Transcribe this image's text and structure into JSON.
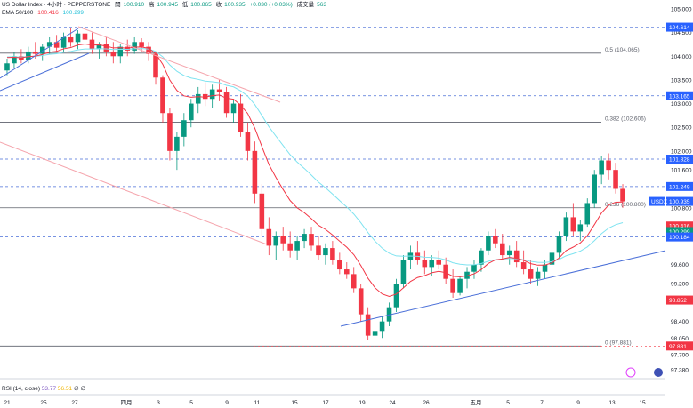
{
  "header": {
    "title": "US Dollar Index · 4小时 · PEPPERSTONE",
    "open_label": "開",
    "open": "100.910",
    "high_label": "高",
    "high": "100.945",
    "low_label": "低",
    "low": "100.865",
    "close_label": "收",
    "close": "100.935",
    "change": "+0.030 (+0.03%)",
    "volume_label": "成交量",
    "volume": "563",
    "ema_label": "EMA 50/100",
    "ema50": "100.416",
    "ema100": "100.299"
  },
  "rsi": {
    "label": "RSI (14, close)",
    "v1": "53.77",
    "v2": "56.51",
    "v3": "∅",
    "v4": "∅"
  },
  "colors": {
    "up": "#089981",
    "down": "#f23645",
    "ema50": "#f23645",
    "ema100": "#7fe3f0",
    "trend": "#4a6fd8",
    "level": "#4a6fd8"
  },
  "chart_data": {
    "type": "candlestick",
    "symbol": "USDX",
    "y_ticks": [
      "105.000",
      "104.500",
      "104.000",
      "103.500",
      "103.000",
      "102.500",
      "102.000",
      "101.600",
      "100.800",
      "99.600",
      "99.200",
      "98.400",
      "98.050",
      "97.700",
      "97.380"
    ],
    "ylim": [
      97.38,
      105.0
    ],
    "x_ticks": [
      "21",
      "25",
      "27",
      "四月",
      "3",
      "5",
      "9",
      "11",
      "15",
      "17",
      "19",
      "24",
      "26",
      "五月",
      "5",
      "7",
      "9",
      "13",
      "15"
    ],
    "price_labels": [
      {
        "value": 104.614,
        "text": "104.614",
        "color": "#2962ff"
      },
      {
        "value": 103.165,
        "text": "103.165",
        "color": "#2962ff"
      },
      {
        "value": 101.828,
        "text": "101.828",
        "color": "#2962ff"
      },
      {
        "value": 101.249,
        "text": "101.249",
        "color": "#2962ff"
      },
      {
        "value": 100.935,
        "text": "100.935",
        "color": "#2962ff",
        "name": "USDX"
      },
      {
        "value": 100.416,
        "text": "100.416",
        "color": "#f23645"
      },
      {
        "value": 100.299,
        "text": "100.299",
        "color": "#089981"
      },
      {
        "value": 100.184,
        "text": "100.184",
        "color": "#2962ff"
      },
      {
        "value": 98.852,
        "text": "98.852",
        "color": "#f23645"
      },
      {
        "value": 97.881,
        "text": "97.881",
        "color": "#f23645"
      }
    ],
    "fib_levels": [
      {
        "value": 104.065,
        "text": "0.5 (104.065)"
      },
      {
        "value": 102.606,
        "text": "0.382 (102.606)"
      },
      {
        "value": 100.8,
        "text": "0.236 (100.800)"
      },
      {
        "value": 97.881,
        "text": "0 (97.881)"
      }
    ],
    "dashed_levels": [
      104.614,
      103.165,
      101.828,
      101.249,
      100.184
    ],
    "candles": [
      [
        103.7,
        103.95,
        103.6,
        103.85
      ],
      [
        103.85,
        104.1,
        103.75,
        104.0
      ],
      [
        104.0,
        104.15,
        103.85,
        103.92
      ],
      [
        103.92,
        104.2,
        103.85,
        104.1
      ],
      [
        104.1,
        104.3,
        103.95,
        104.05
      ],
      [
        104.05,
        104.25,
        103.9,
        104.2
      ],
      [
        104.2,
        104.4,
        104.05,
        104.3
      ],
      [
        104.3,
        104.45,
        104.1,
        104.18
      ],
      [
        104.18,
        104.5,
        104.1,
        104.4
      ],
      [
        104.4,
        104.6,
        104.2,
        104.3
      ],
      [
        104.3,
        104.55,
        104.15,
        104.48
      ],
      [
        104.48,
        104.62,
        104.25,
        104.35
      ],
      [
        104.35,
        104.5,
        104.05,
        104.15
      ],
      [
        104.15,
        104.3,
        103.95,
        104.25
      ],
      [
        104.25,
        104.4,
        104.0,
        104.1
      ],
      [
        104.1,
        104.3,
        103.85,
        104.0
      ],
      [
        104.0,
        104.25,
        103.85,
        104.2
      ],
      [
        104.2,
        104.35,
        104.0,
        104.12
      ],
      [
        104.12,
        104.4,
        104.05,
        104.3
      ],
      [
        104.3,
        104.38,
        104.1,
        104.2
      ],
      [
        104.2,
        104.3,
        103.9,
        104.05
      ],
      [
        104.05,
        104.1,
        103.4,
        103.55
      ],
      [
        103.55,
        103.6,
        102.6,
        102.8
      ],
      [
        102.8,
        102.9,
        101.8,
        102.0
      ],
      [
        102.0,
        102.4,
        101.6,
        102.3
      ],
      [
        102.3,
        102.8,
        102.1,
        102.65
      ],
      [
        102.65,
        103.1,
        102.5,
        103.0
      ],
      [
        103.0,
        103.35,
        102.8,
        103.2
      ],
      [
        103.2,
        103.45,
        102.95,
        103.1
      ],
      [
        103.1,
        103.4,
        102.9,
        103.3
      ],
      [
        103.3,
        103.5,
        103.05,
        103.25
      ],
      [
        103.25,
        103.35,
        102.7,
        102.8
      ],
      [
        102.8,
        103.1,
        102.6,
        103.0
      ],
      [
        103.0,
        103.2,
        102.3,
        102.4
      ],
      [
        102.4,
        102.6,
        101.8,
        102.0
      ],
      [
        102.0,
        102.2,
        100.9,
        101.1
      ],
      [
        101.1,
        101.3,
        100.2,
        100.35
      ],
      [
        100.35,
        100.6,
        99.8,
        100.0
      ],
      [
        100.0,
        100.3,
        99.7,
        100.2
      ],
      [
        100.2,
        100.4,
        99.9,
        100.05
      ],
      [
        100.05,
        100.3,
        99.75,
        99.9
      ],
      [
        99.9,
        100.2,
        99.7,
        100.1
      ],
      [
        100.1,
        100.35,
        99.95,
        100.25
      ],
      [
        100.25,
        100.4,
        99.9,
        100.0
      ],
      [
        100.0,
        100.2,
        99.7,
        99.8
      ],
      [
        99.8,
        100.05,
        99.6,
        99.95
      ],
      [
        99.95,
        100.1,
        99.6,
        99.7
      ],
      [
        99.7,
        99.85,
        99.4,
        99.5
      ],
      [
        99.5,
        99.65,
        99.3,
        99.4
      ],
      [
        99.4,
        99.55,
        99.0,
        99.1
      ],
      [
        99.1,
        99.2,
        98.4,
        98.55
      ],
      [
        98.55,
        98.7,
        98.0,
        98.1
      ],
      [
        98.1,
        98.3,
        97.9,
        98.2
      ],
      [
        98.2,
        98.5,
        98.05,
        98.4
      ],
      [
        98.4,
        98.8,
        98.3,
        98.7
      ],
      [
        98.7,
        99.3,
        98.6,
        99.2
      ],
      [
        99.2,
        99.8,
        99.1,
        99.7
      ],
      [
        99.7,
        100.0,
        99.5,
        99.85
      ],
      [
        99.85,
        100.1,
        99.6,
        99.7
      ],
      [
        99.7,
        99.9,
        99.4,
        99.55
      ],
      [
        99.55,
        99.8,
        99.35,
        99.7
      ],
      [
        99.7,
        99.9,
        99.5,
        99.6
      ],
      [
        99.6,
        99.75,
        99.2,
        99.3
      ],
      [
        99.3,
        99.5,
        98.9,
        99.0
      ],
      [
        99.0,
        99.35,
        98.95,
        99.3
      ],
      [
        99.3,
        99.55,
        99.1,
        99.45
      ],
      [
        99.45,
        99.7,
        99.3,
        99.6
      ],
      [
        99.6,
        99.95,
        99.45,
        99.9
      ],
      [
        99.9,
        100.3,
        99.8,
        100.2
      ],
      [
        100.2,
        100.35,
        99.95,
        100.05
      ],
      [
        100.05,
        100.25,
        99.7,
        99.8
      ],
      [
        99.8,
        100.0,
        99.6,
        99.9
      ],
      [
        99.9,
        100.1,
        99.55,
        99.65
      ],
      [
        99.65,
        99.9,
        99.4,
        99.5
      ],
      [
        99.5,
        99.7,
        99.2,
        99.3
      ],
      [
        99.3,
        99.55,
        99.15,
        99.45
      ],
      [
        99.45,
        99.7,
        99.3,
        99.6
      ],
      [
        99.6,
        99.95,
        99.45,
        99.85
      ],
      [
        99.85,
        100.3,
        99.75,
        100.2
      ],
      [
        100.2,
        100.7,
        100.1,
        100.6
      ],
      [
        100.6,
        100.9,
        100.2,
        100.3
      ],
      [
        100.3,
        100.55,
        100.1,
        100.45
      ],
      [
        100.45,
        101.0,
        100.4,
        100.9
      ],
      [
        100.9,
        101.6,
        100.8,
        101.5
      ],
      [
        101.5,
        101.9,
        101.3,
        101.8
      ],
      [
        101.8,
        101.95,
        101.4,
        101.6
      ],
      [
        101.6,
        101.75,
        101.1,
        101.2
      ],
      [
        101.2,
        101.3,
        100.8,
        100.935
      ]
    ],
    "rsi_values": [
      53.77,
      56.51
    ]
  }
}
